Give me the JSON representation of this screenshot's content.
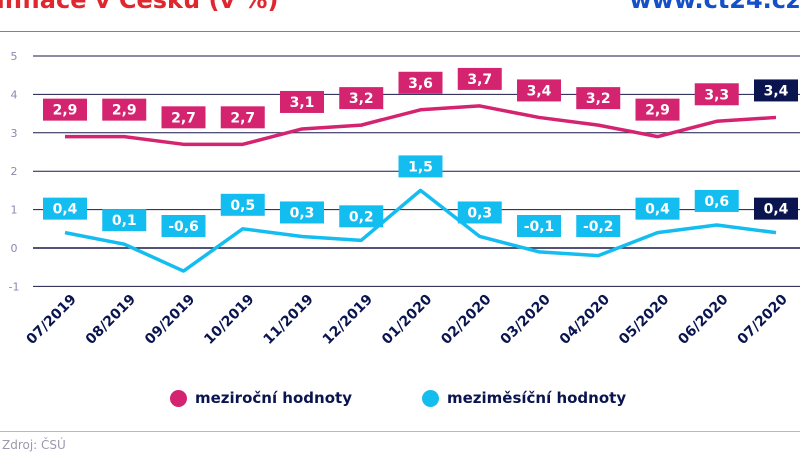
{
  "header": {
    "title": "Inflace v Česku (v %)",
    "url": "www.ct24.cz"
  },
  "source": "Zdroj: ČSÚ",
  "colors": {
    "yoy": "#d4246f",
    "mom": "#14bdf0",
    "last": "#0a1550",
    "grid": "#1a1a4a"
  },
  "chart_data": {
    "type": "line",
    "categories": [
      "07/2019",
      "08/2019",
      "09/2019",
      "10/2019",
      "11/2019",
      "12/2019",
      "01/2020",
      "02/2020",
      "03/2020",
      "04/2020",
      "05/2020",
      "06/2020",
      "07/2020"
    ],
    "yticks": [
      "5",
      "4",
      "3",
      "2",
      "1",
      "0",
      "-1"
    ],
    "ylim": [
      -1,
      5
    ],
    "grid": true,
    "legend": "bottom",
    "series": [
      {
        "name": "meziroční hodnoty",
        "values": [
          2.9,
          2.9,
          2.7,
          2.7,
          3.1,
          3.2,
          3.6,
          3.7,
          3.4,
          3.2,
          2.9,
          3.3,
          3.4
        ],
        "labels": [
          "2,9",
          "2,9",
          "2,7",
          "2,7",
          "3,1",
          "3,2",
          "3,6",
          "3,7",
          "3,4",
          "3,2",
          "2,9",
          "3,3",
          "3,4"
        ]
      },
      {
        "name": "meziměsíční hodnoty",
        "values": [
          0.4,
          0.1,
          -0.6,
          0.5,
          0.3,
          0.2,
          1.5,
          0.3,
          -0.1,
          -0.2,
          0.4,
          0.6,
          0.4
        ],
        "labels": [
          "0,4",
          "0,1",
          "-0,6",
          "0,5",
          "0,3",
          "0,2",
          "1,5",
          "0,3",
          "-0,1",
          "-0,2",
          "0,4",
          "0,6",
          "0,4"
        ]
      }
    ]
  }
}
